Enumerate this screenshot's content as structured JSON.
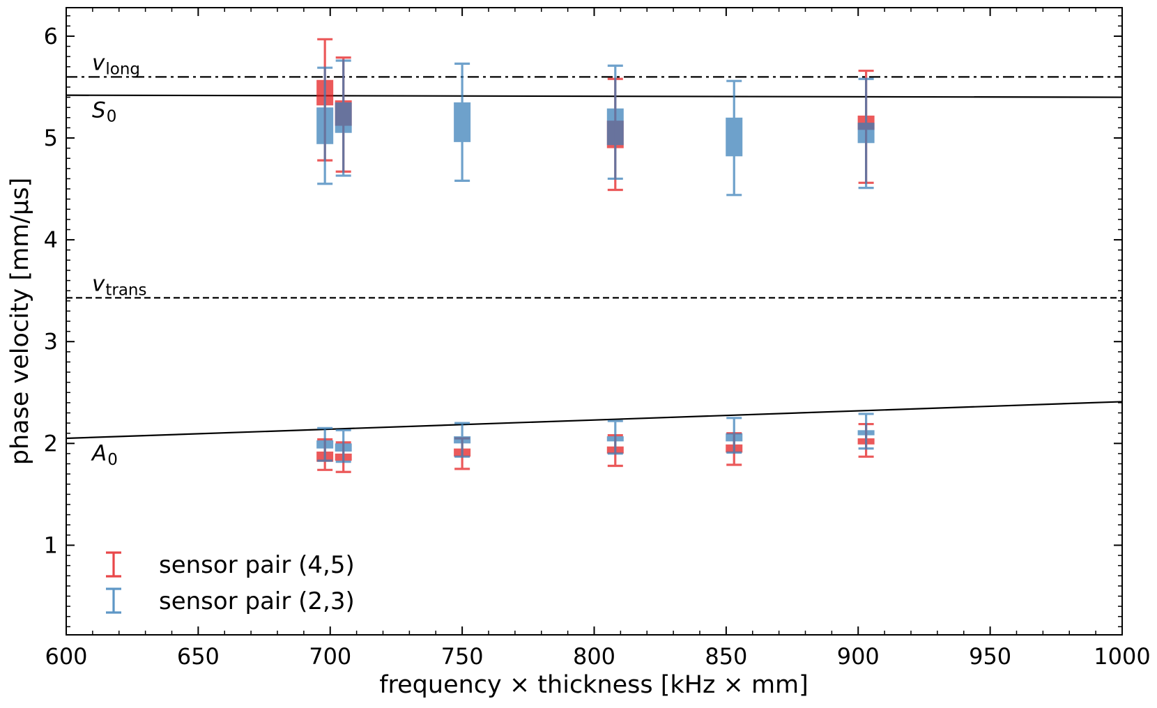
{
  "chart_data": {
    "type": "scatter",
    "xlabel": "frequency × thickness [kHz × mm]",
    "ylabel": "phase velocity [mm/μs]",
    "xlim": [
      600,
      1000
    ],
    "ylim": [
      0.12,
      6.28
    ],
    "xticks": [
      "600",
      "650",
      "700",
      "750",
      "800",
      "850",
      "900",
      "950",
      "1000"
    ],
    "yticks": [
      "1",
      "2",
      "3",
      "4",
      "5",
      "6"
    ],
    "grid": false,
    "legend_position": "bottom-left",
    "reference_lines": [
      {
        "name_main": "v",
        "name_sub": "long",
        "style": "dash-dot",
        "y": 5.6
      },
      {
        "name_main": "S",
        "name_sub": "0",
        "style": "solid",
        "y_start": 5.42,
        "y_end": 5.4
      },
      {
        "name_main": "v",
        "name_sub": "trans",
        "style": "dashed",
        "y": 3.43
      },
      {
        "name_main": "A",
        "name_sub": "0",
        "style": "solid",
        "y_start": 2.05,
        "y_end": 2.41
      }
    ],
    "series": [
      {
        "name": "sensor pair (4,5)",
        "color": "#e41a1c",
        "points": [
          {
            "x": 698,
            "box": [
              5.32,
              5.57
            ],
            "err": [
              4.78,
              5.97
            ]
          },
          {
            "x": 698,
            "box": [
              1.82,
              1.92
            ],
            "err": [
              1.74,
              2.04
            ]
          },
          {
            "x": 705,
            "box": [
              5.12,
              5.37
            ],
            "err": [
              4.67,
              5.79
            ]
          },
          {
            "x": 705,
            "box": [
              1.83,
              1.9
            ],
            "err": [
              1.72,
              2.01
            ]
          },
          {
            "x": 750,
            "box": [
              1.87,
              1.95
            ],
            "err": [
              1.75,
              2.05
            ]
          },
          {
            "x": 808,
            "box": [
              4.9,
              5.17
            ],
            "err": [
              4.49,
              5.58
            ]
          },
          {
            "x": 808,
            "box": [
              1.9,
              1.97
            ],
            "err": [
              1.78,
              2.08
            ]
          },
          {
            "x": 853,
            "box": [
              1.91,
              1.99
            ],
            "err": [
              1.79,
              2.1
            ]
          },
          {
            "x": 903,
            "box": [
              5.08,
              5.22
            ],
            "err": [
              4.56,
              5.66
            ]
          },
          {
            "x": 903,
            "box": [
              1.99,
              2.05
            ],
            "err": [
              1.87,
              2.19
            ]
          }
        ]
      },
      {
        "name": "sensor pair (2,3)",
        "color": "#377eb8",
        "points": [
          {
            "x": 698,
            "box": [
              4.94,
              5.3
            ],
            "err": [
              4.55,
              5.69
            ]
          },
          {
            "x": 698,
            "box": [
              1.95,
              2.03
            ],
            "err": [
              1.83,
              2.15
            ]
          },
          {
            "x": 705,
            "box": [
              5.05,
              5.35
            ],
            "err": [
              4.63,
              5.76
            ]
          },
          {
            "x": 705,
            "box": [
              1.92,
              2.0
            ],
            "err": [
              1.82,
              2.13
            ]
          },
          {
            "x": 750,
            "box": [
              4.96,
              5.35
            ],
            "err": [
              4.58,
              5.73
            ]
          },
          {
            "x": 750,
            "box": [
              2.0,
              2.07
            ],
            "err": [
              1.87,
              2.2
            ]
          },
          {
            "x": 808,
            "box": [
              4.93,
              5.29
            ],
            "err": [
              4.6,
              5.71
            ]
          },
          {
            "x": 808,
            "box": [
              2.02,
              2.07
            ],
            "err": [
              1.9,
              2.22
            ]
          },
          {
            "x": 853,
            "box": [
              4.82,
              5.2
            ],
            "err": [
              4.44,
              5.56
            ]
          },
          {
            "x": 853,
            "box": [
              2.02,
              2.1
            ],
            "err": [
              1.91,
              2.25
            ]
          },
          {
            "x": 903,
            "box": [
              4.95,
              5.15
            ],
            "err": [
              4.51,
              5.58
            ]
          },
          {
            "x": 903,
            "box": [
              2.08,
              2.13
            ],
            "err": [
              1.95,
              2.29
            ]
          }
        ]
      }
    ]
  }
}
